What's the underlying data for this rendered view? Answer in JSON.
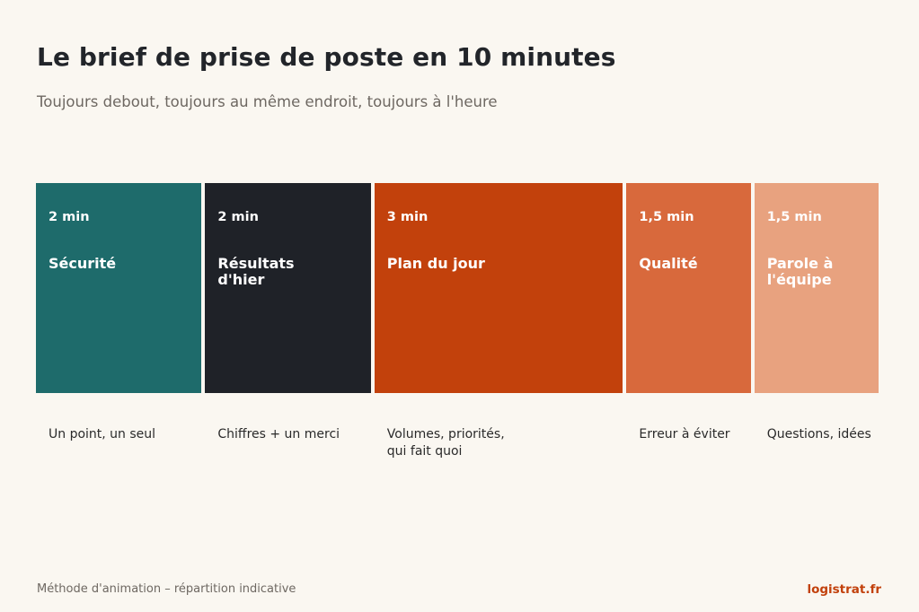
{
  "header": {
    "title": "Le brief de prise de poste en 10 minutes",
    "subtitle": "Toujours debout, toujours au même endroit, toujours à l'heure"
  },
  "segments": [
    {
      "duration": "2 min",
      "minutes": 2,
      "name": "Sécurité",
      "description": "Un point, un seul",
      "color": "#1e6b6b"
    },
    {
      "duration": "2 min",
      "minutes": 2,
      "name": "Résultats\nd'hier",
      "description": "Chiffres + un merci",
      "color": "#1f2228"
    },
    {
      "duration": "3 min",
      "minutes": 3,
      "name": "Plan du jour",
      "description": "Volumes, priorités,\nqui fait quoi",
      "color": "#c2410c"
    },
    {
      "duration": "1,5 min",
      "minutes": 1.5,
      "name": "Qualité",
      "description": "Erreur à éviter",
      "color": "#d8693c"
    },
    {
      "duration": "1,5 min",
      "minutes": 1.5,
      "name": "Parole à\nl'équipe",
      "description": "Questions, idées",
      "color": "#e8a27f"
    }
  ],
  "footer": {
    "note": "Méthode d'animation – répartition indicative",
    "brand": "logistrat.fr"
  }
}
